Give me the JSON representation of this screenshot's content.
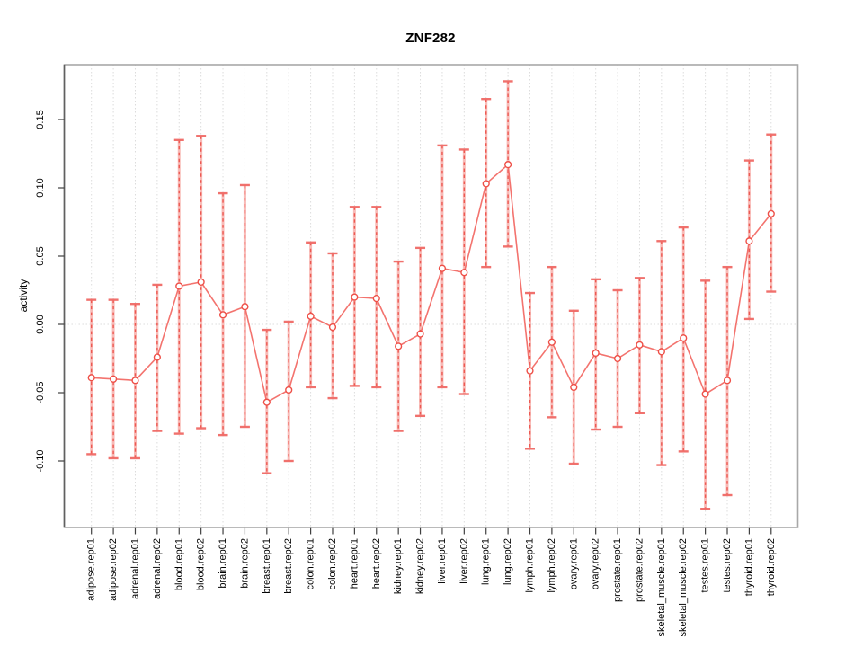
{
  "chart_data": {
    "type": "scatter",
    "title": "ZNF282",
    "xlabel": "",
    "ylabel": "activity",
    "ylim": [
      -0.149,
      0.19
    ],
    "ytick_values": [
      0.15,
      0.1,
      0.05,
      0,
      -0.05,
      -0.1
    ],
    "ytick_labels": [
      "0.15",
      "0.10",
      "0.05",
      "0.00",
      "-0.05",
      "-0.10"
    ],
    "grid": "vertical dotted gridline at every category; dotted horizontal line at y=0",
    "legend_position": "none",
    "point_style": "open circles with vertical error bars (dashed red over light pink, flat caps) joined by a salmon line",
    "categories": [
      "adipose.rep01",
      "adipose.rep02",
      "adrenal.rep01",
      "adrenal.rep02",
      "blood.rep01",
      "blood.rep02",
      "brain.rep01",
      "brain.rep02",
      "breast.rep01",
      "breast.rep02",
      "colon.rep01",
      "colon.rep02",
      "heart.rep01",
      "heart.rep02",
      "kidney.rep01",
      "kidney.rep02",
      "liver.rep01",
      "liver.rep02",
      "lung.rep01",
      "lung.rep02",
      "lymph.rep01",
      "lymph.rep02",
      "ovary.rep01",
      "ovary.rep02",
      "prostate.rep01",
      "prostate.rep02",
      "skeletal_muscle.rep01",
      "skeletal_muscle.rep02",
      "testes.rep01",
      "testes.rep02",
      "thyroid.rep01",
      "thyroid.rep02"
    ],
    "series": [
      {
        "name": "activity",
        "values": [
          -0.039,
          -0.04,
          -0.041,
          -0.024,
          0.028,
          0.031,
          0.007,
          0.013,
          -0.057,
          -0.048,
          0.006,
          -0.002,
          0.02,
          0.019,
          -0.016,
          -0.007,
          0.041,
          0.038,
          0.103,
          0.117,
          -0.034,
          -0.013,
          -0.046,
          -0.021,
          -0.025,
          -0.015,
          -0.02,
          -0.01,
          -0.051,
          -0.041,
          0.061,
          0.081
        ]
      },
      {
        "name": "ci_lower",
        "values": [
          -0.095,
          -0.098,
          -0.098,
          -0.078,
          -0.08,
          -0.076,
          -0.081,
          -0.075,
          -0.109,
          -0.1,
          -0.046,
          -0.054,
          -0.045,
          -0.046,
          -0.078,
          -0.067,
          -0.046,
          -0.051,
          0.042,
          0.057,
          -0.091,
          -0.068,
          -0.102,
          -0.077,
          -0.075,
          -0.065,
          -0.103,
          -0.093,
          -0.135,
          -0.125,
          0.004,
          0.024
        ]
      },
      {
        "name": "ci_upper",
        "values": [
          0.018,
          0.018,
          0.015,
          0.029,
          0.135,
          0.138,
          0.096,
          0.102,
          -0.004,
          0.002,
          0.06,
          0.052,
          0.086,
          0.086,
          0.046,
          0.056,
          0.131,
          0.128,
          0.165,
          0.178,
          0.023,
          0.042,
          0.01,
          0.033,
          0.025,
          0.034,
          0.061,
          0.071,
          0.032,
          0.042,
          0.12,
          0.139
        ]
      }
    ],
    "colors": {
      "point": "#ee4f47",
      "line": "#f26b66",
      "errorbar_dash": "#ec4f48",
      "errorbar_light": "#f8b4b0",
      "errorbar_cap": "#f06a66",
      "grid": "#dcdcdc",
      "plot_border": "#a8a8a8",
      "axis_line": "#606060",
      "tick": "#404040",
      "text": "#000000",
      "background": "#ffffff"
    }
  }
}
